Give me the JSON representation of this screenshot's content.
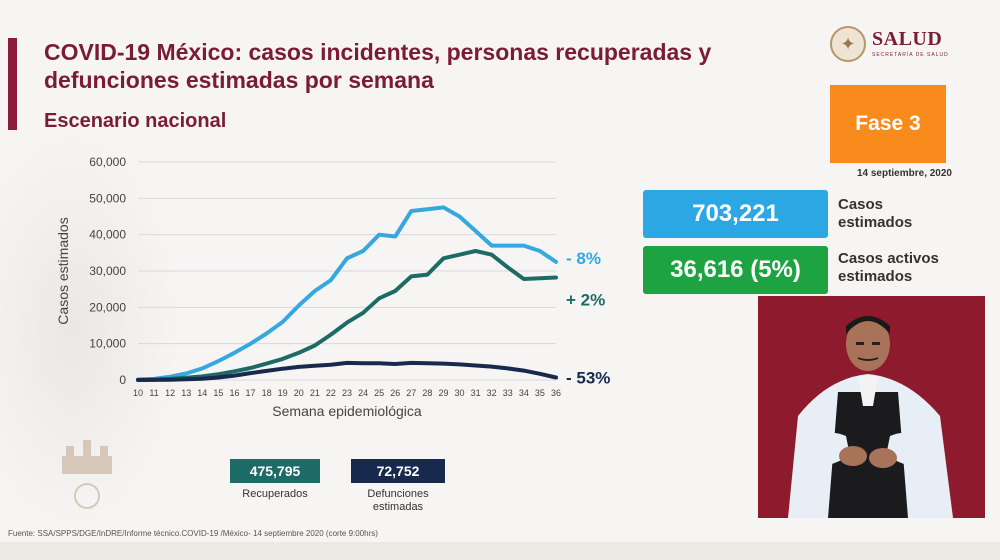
{
  "header": {
    "title": "COVID-19 México: casos incidentes, personas recuperadas y defunciones estimadas por semana",
    "subtitle": "Escenario nacional"
  },
  "logo": {
    "text": "SALUD",
    "sub": "SECRETARÍA DE SALUD"
  },
  "phase": {
    "label": "Fase 3",
    "date": "14 septiembre, 2020"
  },
  "stats": [
    {
      "value": "703,221",
      "label_line1": "Casos",
      "label_line2": "estimados",
      "color": "#2ba7e3"
    },
    {
      "value": "36,616 (5%)",
      "label_line1": "Casos activos",
      "label_line2": "estimados",
      "color": "#1ea343"
    }
  ],
  "totals": [
    {
      "value": "475,795",
      "label_line1": "Recuperados",
      "label_line2": "",
      "color": "#1c6b66"
    },
    {
      "value": "72,752",
      "label_line1": "Defunciones",
      "label_line2": "estimadas",
      "color": "#172a4e"
    }
  ],
  "footer": "Fuente: SSA/SPPS/DGE/InDRE/Informe técnico.COVID-19 /México- 14 septiembre 2020 (corte 9:00hrs)",
  "chart_data": {
    "type": "line",
    "xlabel": "Semana epidemiológica",
    "ylabel": "Casos estimados",
    "ylim": [
      0,
      60000
    ],
    "yticks": [
      "0",
      "10,000",
      "20,000",
      "30,000",
      "40,000",
      "50,000",
      "60,000"
    ],
    "x": [
      10,
      11,
      12,
      13,
      14,
      15,
      16,
      17,
      18,
      19,
      20,
      21,
      22,
      23,
      24,
      25,
      26,
      27,
      28,
      29,
      30,
      31,
      32,
      33,
      34,
      35,
      36
    ],
    "grid": true,
    "series": [
      {
        "pct": "- 8%",
        "color": "#35a8e0",
        "values": [
          100,
          300,
          900,
          1800,
          3200,
          5200,
          7500,
          10000,
          12800,
          16000,
          20500,
          24500,
          27500,
          33500,
          35500,
          40000,
          39500,
          46500,
          47000,
          47500,
          45000,
          41000,
          37000,
          37000,
          37000,
          35500,
          32500
        ]
      },
      {
        "pct": "+ 2%",
        "color": "#1c6b66",
        "values": [
          50,
          100,
          300,
          600,
          1000,
          1600,
          2400,
          3300,
          4500,
          5800,
          7500,
          9500,
          12500,
          15800,
          18500,
          22500,
          24500,
          28500,
          29000,
          33500,
          34500,
          35500,
          34500,
          31000,
          27800,
          28000,
          28200
        ]
      },
      {
        "pct": "- 53%",
        "color": "#172a4e",
        "values": [
          10,
          30,
          80,
          180,
          350,
          700,
          1200,
          1900,
          2500,
          3100,
          3600,
          3900,
          4200,
          4700,
          4600,
          4600,
          4400,
          4700,
          4600,
          4500,
          4300,
          4000,
          3700,
          3200,
          2600,
          1700,
          700
        ]
      }
    ]
  }
}
